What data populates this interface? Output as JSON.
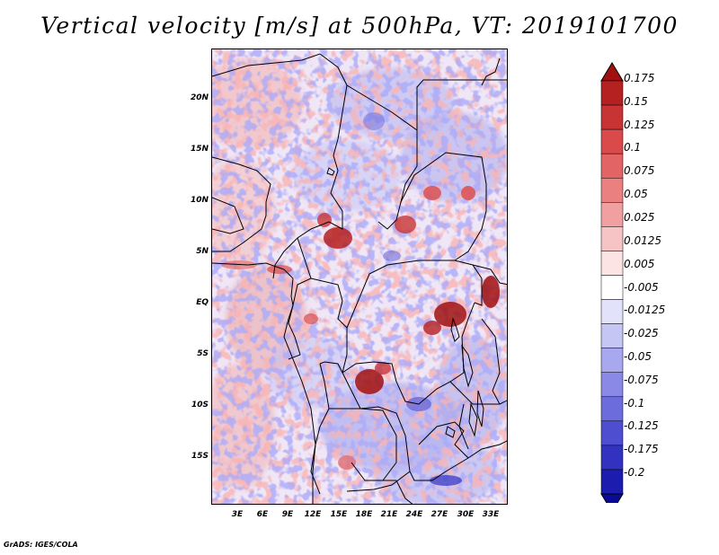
{
  "title": "Vertical velocity [m/s] at 500hPa, VT: 2019101700",
  "lat_labels": [
    "20N",
    "15N",
    "10N",
    "5N",
    "EQ",
    "5S",
    "10S",
    "15S"
  ],
  "lon_labels": [
    "3E",
    "6E",
    "9E",
    "12E",
    "15E",
    "18E",
    "21E",
    "24E",
    "27E",
    "30E",
    "33E"
  ],
  "colorbar": {
    "labels": [
      "0.175",
      "0.15",
      "0.125",
      "0.1",
      "0.075",
      "0.05",
      "0.025",
      "0.0125",
      "0.005",
      "-0.005",
      "-0.0125",
      "-0.025",
      "-0.05",
      "-0.075",
      "-0.1",
      "-0.125",
      "-0.175",
      "-0.2"
    ],
    "colors": [
      "#a01010",
      "#b52020",
      "#c83434",
      "#da4a4a",
      "#e26464",
      "#ea8080",
      "#f0a0a0",
      "#f6c4c4",
      "#fce4e4",
      "#ffffff",
      "#e2e2fb",
      "#c6c6f5",
      "#a8a8ee",
      "#8a8ae6",
      "#6c6cdc",
      "#4e4ed0",
      "#3232c0",
      "#1c1cae",
      "#0a0a96"
    ]
  },
  "credit": "GrADS: IGES/COLA",
  "map_data": {
    "region": "Central Africa",
    "lon_range_deg": [
      0,
      35
    ],
    "lat_range_deg": [
      -20,
      25
    ],
    "variable": "Vertical velocity at 500hPa",
    "units": "m/s",
    "valid_time": "2019101700"
  }
}
